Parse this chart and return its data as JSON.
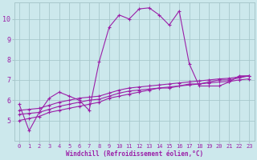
{
  "background_color": "#cce8ec",
  "line_color": "#9b1fa8",
  "grid_color": "#a8c8cc",
  "xlabel": "Windchill (Refroidissement éolien,°C)",
  "xlim": [
    -0.5,
    23.5
  ],
  "ylim": [
    4.0,
    10.8
  ],
  "yticks": [
    5,
    6,
    7,
    8,
    9,
    10
  ],
  "xticks": [
    0,
    1,
    2,
    3,
    4,
    5,
    6,
    7,
    8,
    9,
    10,
    11,
    12,
    13,
    14,
    15,
    16,
    17,
    18,
    19,
    20,
    21,
    22,
    23
  ],
  "series": [
    [
      5.8,
      4.5,
      5.4,
      6.1,
      6.4,
      6.2,
      6.0,
      5.5,
      7.9,
      9.6,
      10.2,
      10.0,
      10.5,
      10.55,
      10.2,
      9.7,
      10.4,
      7.8,
      6.7,
      6.7,
      6.7,
      6.9,
      7.2,
      7.2
    ],
    [
      5.0,
      5.1,
      5.2,
      5.4,
      5.5,
      5.6,
      5.7,
      5.8,
      5.9,
      6.1,
      6.2,
      6.3,
      6.4,
      6.5,
      6.6,
      6.6,
      6.7,
      6.8,
      6.8,
      6.9,
      7.0,
      7.0,
      7.1,
      7.2
    ],
    [
      5.3,
      5.35,
      5.4,
      5.55,
      5.7,
      5.8,
      5.9,
      6.0,
      6.05,
      6.2,
      6.35,
      6.45,
      6.5,
      6.55,
      6.6,
      6.65,
      6.7,
      6.75,
      6.8,
      6.85,
      6.9,
      6.92,
      7.0,
      7.05
    ],
    [
      5.5,
      5.55,
      5.6,
      5.75,
      5.9,
      6.0,
      6.1,
      6.15,
      6.2,
      6.35,
      6.5,
      6.6,
      6.65,
      6.7,
      6.75,
      6.8,
      6.85,
      6.9,
      6.95,
      7.0,
      7.05,
      7.08,
      7.15,
      7.2
    ]
  ]
}
